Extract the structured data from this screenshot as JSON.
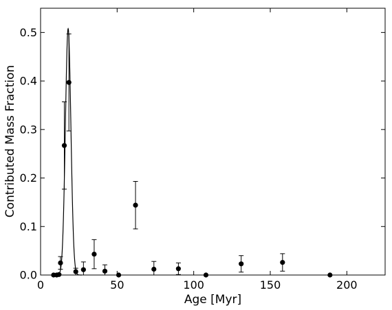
{
  "chart_data": {
    "type": "scatter",
    "xlabel": "Age [Myr]",
    "ylabel": "Contributed Mass Fraction",
    "xlim": [
      0,
      225
    ],
    "ylim": [
      0,
      0.55
    ],
    "x_ticks": [
      0,
      50,
      100,
      150,
      200
    ],
    "x_tick_labels": [
      "0",
      "50",
      "100",
      "150",
      "200"
    ],
    "y_ticks": [
      0.0,
      0.1,
      0.2,
      0.3,
      0.4,
      0.5
    ],
    "y_tick_labels": [
      "0.0",
      "0.1",
      "0.2",
      "0.3",
      "0.4",
      "0.5"
    ],
    "grid": false,
    "points": [
      {
        "x": 8.5,
        "y": 0.0,
        "err": 0.0
      },
      {
        "x": 10.5,
        "y": 0.0,
        "err": 0.0
      },
      {
        "x": 12.0,
        "y": 0.001,
        "err": 0.001
      },
      {
        "x": 13.0,
        "y": 0.025,
        "err": 0.013
      },
      {
        "x": 15.5,
        "y": 0.267,
        "err": 0.09
      },
      {
        "x": 18.5,
        "y": 0.397,
        "err": 0.1
      },
      {
        "x": 23.0,
        "y": 0.007,
        "err": 0.007
      },
      {
        "x": 28.0,
        "y": 0.011,
        "err": 0.016
      },
      {
        "x": 35.0,
        "y": 0.043,
        "err": 0.03
      },
      {
        "x": 42.0,
        "y": 0.008,
        "err": 0.013
      },
      {
        "x": 51.0,
        "y": 0.0,
        "err": 0.0
      },
      {
        "x": 62.0,
        "y": 0.144,
        "err": 0.049
      },
      {
        "x": 74.0,
        "y": 0.012,
        "err": 0.016
      },
      {
        "x": 90.0,
        "y": 0.013,
        "err": 0.012
      },
      {
        "x": 108.0,
        "y": 0.0,
        "err": 0.0
      },
      {
        "x": 131.0,
        "y": 0.023,
        "err": 0.017
      },
      {
        "x": 158.0,
        "y": 0.026,
        "err": 0.018
      },
      {
        "x": 189.0,
        "y": 0.0,
        "err": 0.0
      }
    ],
    "fit_curve": {
      "type": "gaussian",
      "amplitude": 0.508,
      "center": 18.0,
      "sigma": 1.8
    }
  }
}
